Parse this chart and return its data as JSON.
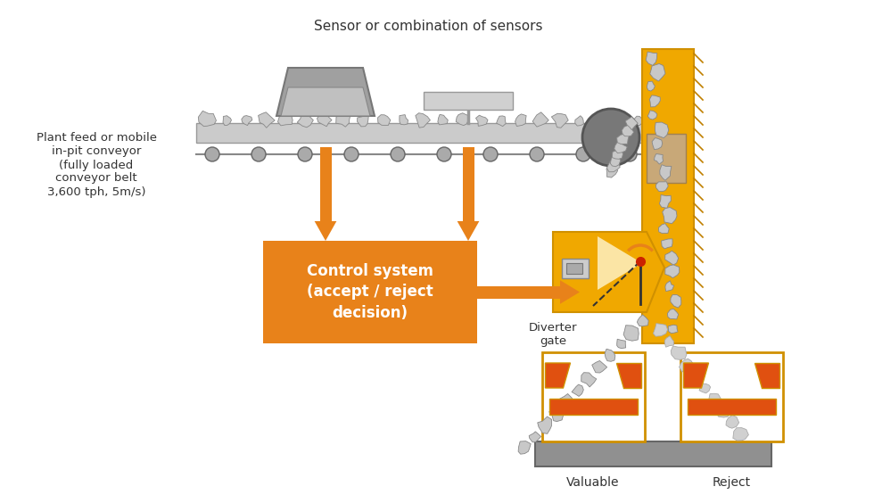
{
  "bg_color": "#ffffff",
  "title": "Sensor or combination of sensors",
  "left_label": "Plant feed or mobile\nin-pit conveyor\n(fully loaded\nconveyor belt\n3,600 tph, 5m/s)",
  "control_box_text": "Control system\n(accept / reject\ndecision)",
  "diverter_label": "Diverter\ngate",
  "valuable_label": "Valuable",
  "reject_label": "Reject",
  "orange": "#E8821A",
  "light_yellow": "#FFF5D0",
  "gray_dark": "#888888",
  "gray_mid": "#AAAAAA",
  "gray_light": "#CCCCCC",
  "rock_color": "#C0C0C0",
  "rock_edge": "#888888",
  "sensor_dark": "#909090",
  "sensor_light": "#C0C0C0",
  "tan": "#C8A878",
  "gold": "#F0A800",
  "gold_light": "#F5C040",
  "gold_border": "#D09000",
  "hatch_color": "#C08000",
  "roller_color": "#E05010",
  "base_color": "#909090"
}
